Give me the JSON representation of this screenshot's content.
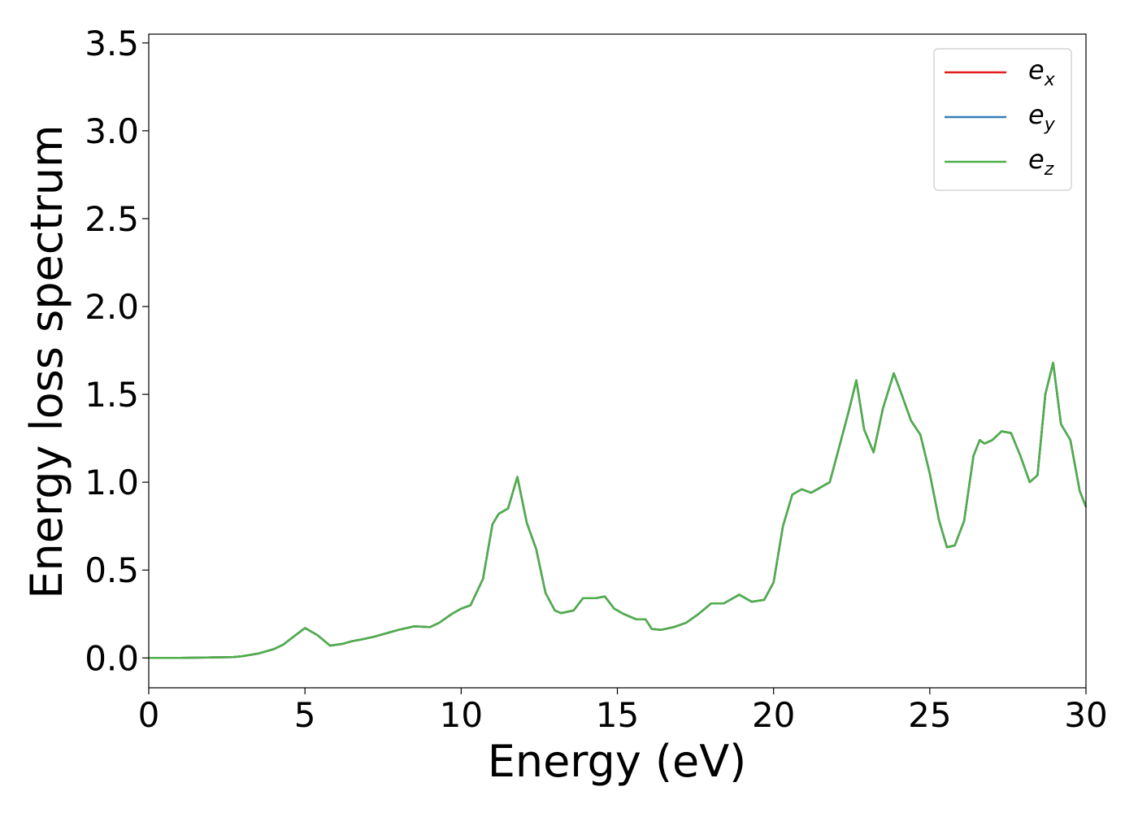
{
  "chart_data": {
    "type": "line",
    "xlabel": "Energy (eV)",
    "ylabel": "Energy loss spectrum",
    "xlim": [
      0,
      30
    ],
    "ylim": [
      -0.17,
      3.55
    ],
    "xticks": [
      0,
      5,
      10,
      15,
      20,
      25,
      30
    ],
    "xtick_labels": [
      "0",
      "5",
      "10",
      "15",
      "20",
      "25",
      "30"
    ],
    "yticks": [
      0.0,
      0.5,
      1.0,
      1.5,
      2.0,
      2.5,
      3.0,
      3.5
    ],
    "ytick_labels": [
      "0.0",
      "0.5",
      "1.0",
      "1.5",
      "2.0",
      "2.5",
      "3.0",
      "3.5"
    ],
    "grid": false,
    "legend_position": "top-right",
    "series": [
      {
        "name": "e",
        "sub": "x",
        "color": "#e41a1c"
      },
      {
        "name": "e",
        "sub": "y",
        "color": "#377eb8"
      },
      {
        "name": "e",
        "sub": "z",
        "color": "#4daf4a"
      }
    ],
    "x": [
      0,
      1,
      2,
      2.7,
      3,
      3.5,
      4,
      4.3,
      4.7,
      5.0,
      5.4,
      5.8,
      6.2,
      6.5,
      6.8,
      7.2,
      7.6,
      8.0,
      8.5,
      9.0,
      9.3,
      9.7,
      10.0,
      10.3,
      10.7,
      11.0,
      11.2,
      11.5,
      11.8,
      12.1,
      12.4,
      12.7,
      13.0,
      13.2,
      13.6,
      13.9,
      14.1,
      14.3,
      14.6,
      14.9,
      15.2,
      15.6,
      15.9,
      16.1,
      16.4,
      16.8,
      17.2,
      17.6,
      18.0,
      18.4,
      18.9,
      19.3,
      19.7,
      20.0,
      20.3,
      20.6,
      20.9,
      21.2,
      21.5,
      21.8,
      22.1,
      22.4,
      22.65,
      22.9,
      23.2,
      23.5,
      23.85,
      24.1,
      24.4,
      24.7,
      25.0,
      25.3,
      25.55,
      25.8,
      26.1,
      26.4,
      26.6,
      26.75,
      27.0,
      27.3,
      27.6,
      27.9,
      28.2,
      28.45,
      28.7,
      28.95,
      29.2,
      29.5,
      29.8,
      30.0
    ],
    "values": [
      0.0,
      0.0,
      0.003,
      0.005,
      0.01,
      0.025,
      0.05,
      0.075,
      0.13,
      0.17,
      0.13,
      0.07,
      0.08,
      0.095,
      0.105,
      0.12,
      0.14,
      0.16,
      0.18,
      0.175,
      0.2,
      0.25,
      0.28,
      0.3,
      0.45,
      0.76,
      0.82,
      0.85,
      1.03,
      0.77,
      0.62,
      0.37,
      0.27,
      0.255,
      0.27,
      0.34,
      0.34,
      0.34,
      0.35,
      0.28,
      0.25,
      0.22,
      0.22,
      0.165,
      0.16,
      0.175,
      0.2,
      0.25,
      0.31,
      0.31,
      0.36,
      0.32,
      0.33,
      0.43,
      0.75,
      0.93,
      0.96,
      0.94,
      0.97,
      1.0,
      1.2,
      1.4,
      1.58,
      1.3,
      1.17,
      1.42,
      1.62,
      1.5,
      1.35,
      1.27,
      1.05,
      0.78,
      0.63,
      0.64,
      0.78,
      1.15,
      1.24,
      1.22,
      1.24,
      1.29,
      1.28,
      1.15,
      1.0,
      1.04,
      1.5,
      1.68,
      1.33,
      1.24,
      0.95,
      0.86
    ]
  }
}
